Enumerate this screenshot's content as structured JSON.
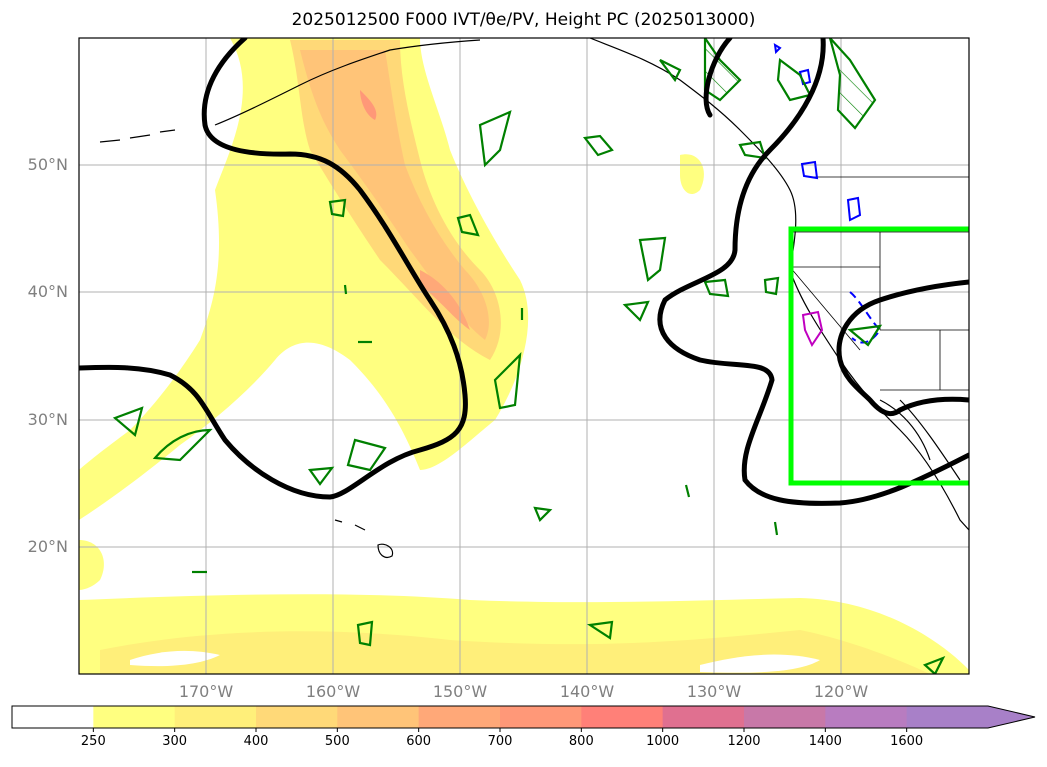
{
  "title": "2025012500 F000 IVT/θe/PV, Height PC (2025013000)",
  "lat_labels": [
    "50°N",
    "40°N",
    "30°N",
    "20°N"
  ],
  "lon_labels": [
    "170°W",
    "160°W",
    "150°W",
    "140°W",
    "130°W",
    "120°W"
  ],
  "colorbar": {
    "ticks": [
      "250",
      "300",
      "400",
      "500",
      "600",
      "700",
      "800",
      "1000",
      "1200",
      "1400",
      "1600"
    ],
    "colors": [
      "#ffffff",
      "#ffff80",
      "#ffef7a",
      "#ffd978",
      "#ffc478",
      "#ffa878",
      "#ff9878",
      "#ff8078",
      "#e07090",
      "#c878a8",
      "#b87cc0",
      "#a880c8"
    ]
  },
  "colors": {
    "height_contour": "#000000",
    "theta_contour": "#008000",
    "pv_contour": "#0000ff",
    "box": "#00ff00",
    "magenta": "#c000c0"
  }
}
